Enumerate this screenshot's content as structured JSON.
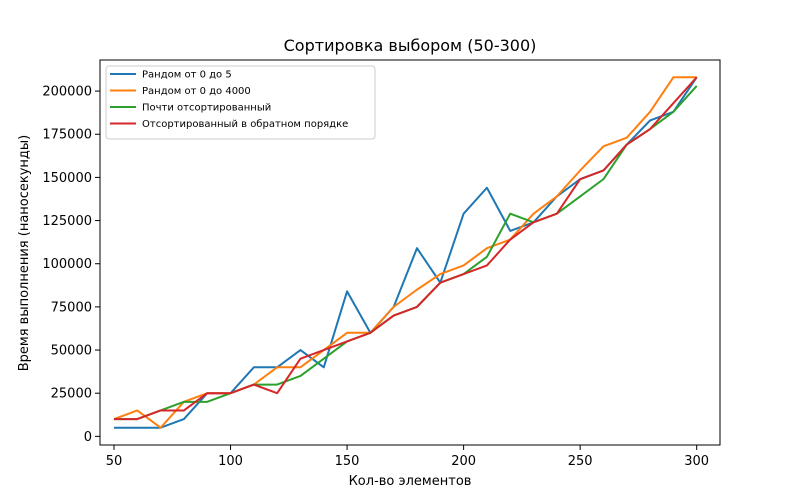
{
  "chart_data": {
    "type": "line",
    "title": "Сортировка выбором (50-300)",
    "xlabel": "Кол-во элементов",
    "ylabel": "Время выполнения (наносекунды)",
    "xlim": [
      44,
      310
    ],
    "ylim": [
      -5000,
      218000
    ],
    "xticks": [
      50,
      100,
      150,
      200,
      250,
      300
    ],
    "yticks": [
      0,
      25000,
      50000,
      75000,
      100000,
      125000,
      150000,
      175000,
      200000
    ],
    "grid": false,
    "legend_position": "upper-left",
    "x": [
      50,
      60,
      70,
      80,
      90,
      100,
      110,
      120,
      130,
      140,
      150,
      160,
      170,
      180,
      190,
      200,
      210,
      220,
      230,
      240,
      250,
      260,
      270,
      280,
      290,
      300
    ],
    "series": [
      {
        "name": "Рандом от 0 до 5",
        "color": "#1f77b4",
        "values": [
          5000,
          5000,
          5000,
          10000,
          25000,
          25000,
          40000,
          40000,
          50000,
          40000,
          84000,
          60000,
          75000,
          109000,
          89000,
          129000,
          144000,
          119000,
          124000,
          139000,
          149000,
          154000,
          169000,
          183000,
          188000,
          208000
        ]
      },
      {
        "name": "Рандом от 0 до 4000",
        "color": "#ff7f0e",
        "values": [
          10000,
          15000,
          5000,
          20000,
          25000,
          25000,
          30000,
          40000,
          40000,
          50000,
          60000,
          60000,
          75000,
          85000,
          94000,
          99000,
          109000,
          114000,
          129000,
          139000,
          154000,
          168000,
          173000,
          188000,
          208000,
          208000
        ]
      },
      {
        "name": "Почти отсортированный",
        "color": "#2ca02c",
        "values": [
          10000,
          10000,
          15000,
          20000,
          20000,
          25000,
          30000,
          30000,
          35000,
          45000,
          55000,
          60000,
          70000,
          75000,
          89000,
          94000,
          104000,
          129000,
          124000,
          129000,
          139000,
          149000,
          169000,
          178000,
          188000,
          203000
        ]
      },
      {
        "name": "Отсортированный в обратном порядке",
        "color": "#d62728",
        "values": [
          10000,
          10000,
          15000,
          15000,
          25000,
          25000,
          30000,
          25000,
          45000,
          50000,
          55000,
          60000,
          70000,
          75000,
          89000,
          94000,
          99000,
          114000,
          124000,
          129000,
          149000,
          154000,
          169000,
          178000,
          193000,
          208000
        ]
      }
    ]
  }
}
